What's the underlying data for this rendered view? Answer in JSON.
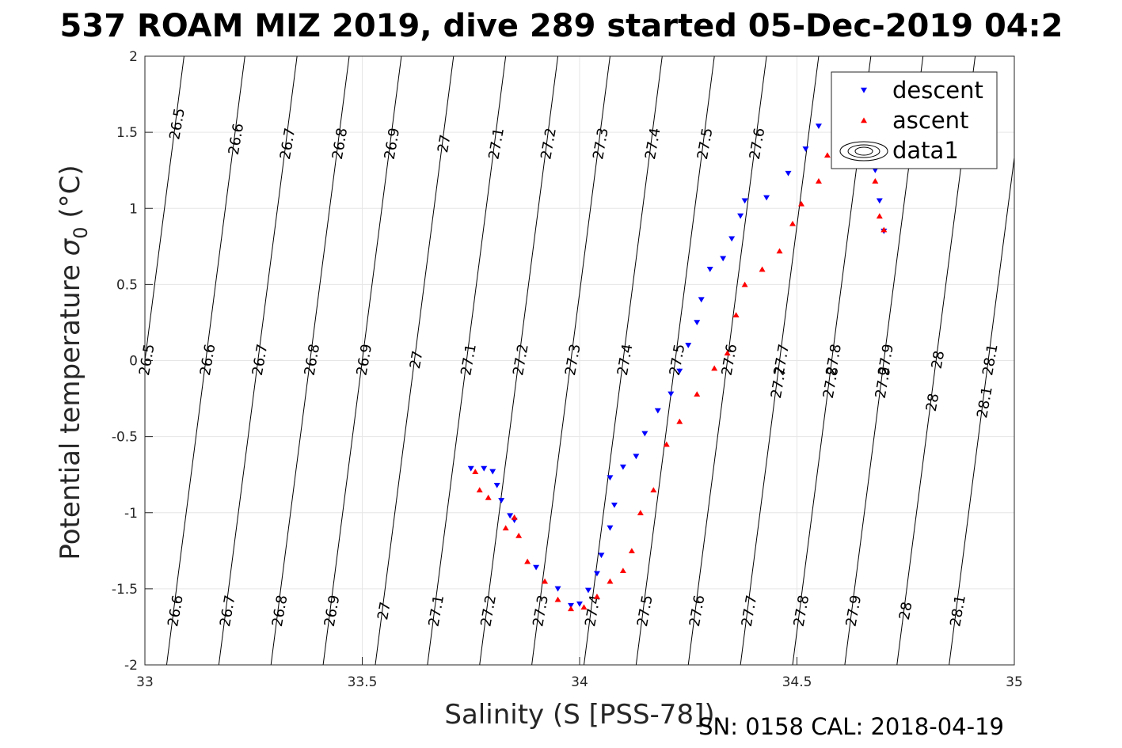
{
  "chart_data": {
    "type": "scatter",
    "title": "537 ROAM MIZ 2019, dive 289 started 05-Dec-2019 04:2",
    "xlabel": "Salinity (S [PSS-78])",
    "ylabel_main": "Potential temperature ",
    "ylabel_sigma": "σ",
    "ylabel_sub": "0",
    "ylabel_unit": " (°C)",
    "footer": "SN: 0158  CAL: 2018-04-19",
    "xlim": [
      33,
      35
    ],
    "ylim": [
      -2,
      2
    ],
    "grid": true,
    "legend_position": "top-right",
    "x_ticks": [
      {
        "value": 33,
        "label": "33"
      },
      {
        "value": 33.5,
        "label": "33.5"
      },
      {
        "value": 34,
        "label": "34"
      },
      {
        "value": 34.5,
        "label": "34.5"
      },
      {
        "value": 35,
        "label": "35"
      }
    ],
    "y_ticks": [
      {
        "value": 2,
        "label": "2"
      },
      {
        "value": 1.5,
        "label": "1.5"
      },
      {
        "value": 1,
        "label": "1"
      },
      {
        "value": 0.5,
        "label": "0.5"
      },
      {
        "value": 0,
        "label": "0"
      },
      {
        "value": -0.5,
        "label": "-0.5"
      },
      {
        "value": -1,
        "label": "-1"
      },
      {
        "value": -1.5,
        "label": "-1.5"
      },
      {
        "value": -2,
        "label": "-2"
      }
    ],
    "series": [
      {
        "name": "descent",
        "color": "#0000ff",
        "marker": "triangle-down",
        "points": [
          [
            33.75,
            -0.71
          ],
          [
            33.78,
            -0.71
          ],
          [
            33.8,
            -0.73
          ],
          [
            33.81,
            -0.82
          ],
          [
            33.82,
            -0.92
          ],
          [
            33.84,
            -1.02
          ],
          [
            33.85,
            -1.05
          ],
          [
            33.9,
            -1.36
          ],
          [
            33.95,
            -1.5
          ],
          [
            33.98,
            -1.61
          ],
          [
            34.0,
            -1.6
          ],
          [
            34.02,
            -1.51
          ],
          [
            34.04,
            -1.4
          ],
          [
            34.05,
            -1.28
          ],
          [
            34.07,
            -1.1
          ],
          [
            34.08,
            -0.95
          ],
          [
            34.07,
            -0.77
          ],
          [
            34.1,
            -0.7
          ],
          [
            34.13,
            -0.63
          ],
          [
            34.15,
            -0.48
          ],
          [
            34.18,
            -0.33
          ],
          [
            34.21,
            -0.22
          ],
          [
            34.23,
            -0.07
          ],
          [
            34.25,
            0.1
          ],
          [
            34.27,
            0.25
          ],
          [
            34.28,
            0.4
          ],
          [
            34.3,
            0.6
          ],
          [
            34.33,
            0.67
          ],
          [
            34.35,
            0.8
          ],
          [
            34.37,
            0.95
          ],
          [
            34.38,
            1.05
          ],
          [
            34.43,
            1.07
          ],
          [
            34.48,
            1.23
          ],
          [
            34.52,
            1.39
          ],
          [
            34.55,
            1.54
          ],
          [
            34.6,
            1.65
          ],
          [
            34.66,
            1.5
          ],
          [
            34.68,
            1.25
          ],
          [
            34.69,
            1.05
          ],
          [
            34.7,
            0.85
          ]
        ]
      },
      {
        "name": "ascent",
        "color": "#ff0000",
        "marker": "triangle-up",
        "points": [
          [
            33.76,
            -0.73
          ],
          [
            33.77,
            -0.85
          ],
          [
            33.79,
            -0.9
          ],
          [
            33.83,
            -1.1
          ],
          [
            33.85,
            -1.03
          ],
          [
            33.86,
            -1.15
          ],
          [
            33.88,
            -1.32
          ],
          [
            33.92,
            -1.45
          ],
          [
            33.95,
            -1.57
          ],
          [
            33.98,
            -1.63
          ],
          [
            34.01,
            -1.62
          ],
          [
            34.04,
            -1.55
          ],
          [
            34.07,
            -1.45
          ],
          [
            34.1,
            -1.38
          ],
          [
            34.12,
            -1.25
          ],
          [
            34.14,
            -1.0
          ],
          [
            34.17,
            -0.85
          ],
          [
            34.2,
            -0.55
          ],
          [
            34.23,
            -0.4
          ],
          [
            34.27,
            -0.22
          ],
          [
            34.31,
            -0.05
          ],
          [
            34.34,
            0.05
          ],
          [
            34.36,
            0.3
          ],
          [
            34.38,
            0.5
          ],
          [
            34.42,
            0.6
          ],
          [
            34.46,
            0.72
          ],
          [
            34.49,
            0.9
          ],
          [
            34.51,
            1.03
          ],
          [
            34.55,
            1.18
          ],
          [
            34.57,
            1.35
          ],
          [
            34.6,
            1.52
          ],
          [
            34.62,
            1.6
          ],
          [
            34.66,
            1.45
          ],
          [
            34.68,
            1.18
          ],
          [
            34.69,
            0.95
          ],
          [
            34.7,
            0.86
          ]
        ]
      }
    ],
    "legend": [
      {
        "label": "descent",
        "marker": "triangle-down",
        "color": "#0000ff"
      },
      {
        "label": "ascent",
        "marker": "triangle-up",
        "color": "#ff0000"
      },
      {
        "label": "data1",
        "marker": "contour",
        "color": "#000000"
      }
    ],
    "density_contours": [
      {
        "value": "26.5",
        "s_at_t0": 33.0,
        "label_t": 1.55
      },
      {
        "value": "26.6",
        "s_at_t0": 33.14,
        "label_t": 1.45
      },
      {
        "value": "26.7",
        "s_at_t0": 33.26,
        "label_t": 1.42
      },
      {
        "value": "26.8",
        "s_at_t0": 33.38,
        "label_t": 1.42
      },
      {
        "value": "26.9",
        "s_at_t0": 33.5,
        "label_t": 1.42
      },
      {
        "value": "27",
        "s_at_t0": 33.62,
        "label_t": 1.42
      },
      {
        "value": "27.1",
        "s_at_t0": 33.74,
        "label_t": 1.42
      },
      {
        "value": "27.2",
        "s_at_t0": 33.86,
        "label_t": 1.42
      },
      {
        "value": "27.3",
        "s_at_t0": 33.98,
        "label_t": 1.42
      },
      {
        "value": "27.4",
        "s_at_t0": 34.1,
        "label_t": 1.42
      },
      {
        "value": "27.5",
        "s_at_t0": 34.22,
        "label_t": 1.42
      },
      {
        "value": "27.6",
        "s_at_t0": 34.34,
        "label_t": 1.42
      },
      {
        "value": "27.7",
        "s_at_t0": 34.46,
        "label_t": -0.15
      },
      {
        "value": "27.8",
        "s_at_t0": 34.58,
        "label_t": -0.15
      },
      {
        "value": "27.9",
        "s_at_t0": 34.7,
        "label_t": -0.15
      },
      {
        "value": "28",
        "s_at_t0": 34.82,
        "label_t": -0.28
      },
      {
        "value": "28.1",
        "s_at_t0": 34.94,
        "label_t": -0.28
      }
    ]
  }
}
